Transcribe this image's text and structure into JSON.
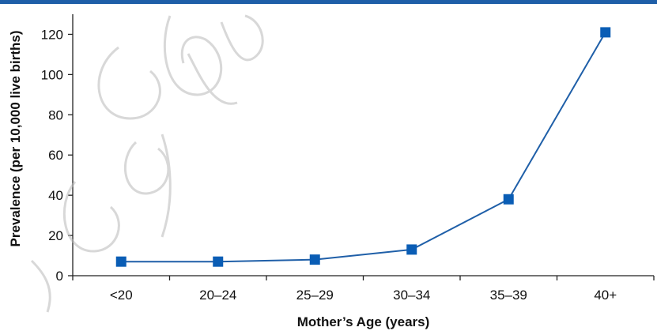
{
  "colors": {
    "top_rule": "#1f5fa8",
    "series": "#1f5fa8",
    "marker": "#0a5db5",
    "axis": "#222222",
    "watermark": "#b8b8b8"
  },
  "chart_data": {
    "type": "line",
    "categories": [
      "<20",
      "20–24",
      "25–29",
      "30–34",
      "35–39",
      "40+"
    ],
    "series": [
      {
        "values": [
          7,
          7,
          8,
          13,
          38,
          121
        ]
      }
    ],
    "xlabel": "Mother’s Age (years)",
    "ylabel": "Prevalence (per 10,000 live births)",
    "ylim": [
      0,
      130
    ],
    "yticks": [
      0,
      20,
      40,
      60,
      80,
      100,
      120
    ],
    "grid": false,
    "legend": "none",
    "marker": "square"
  }
}
